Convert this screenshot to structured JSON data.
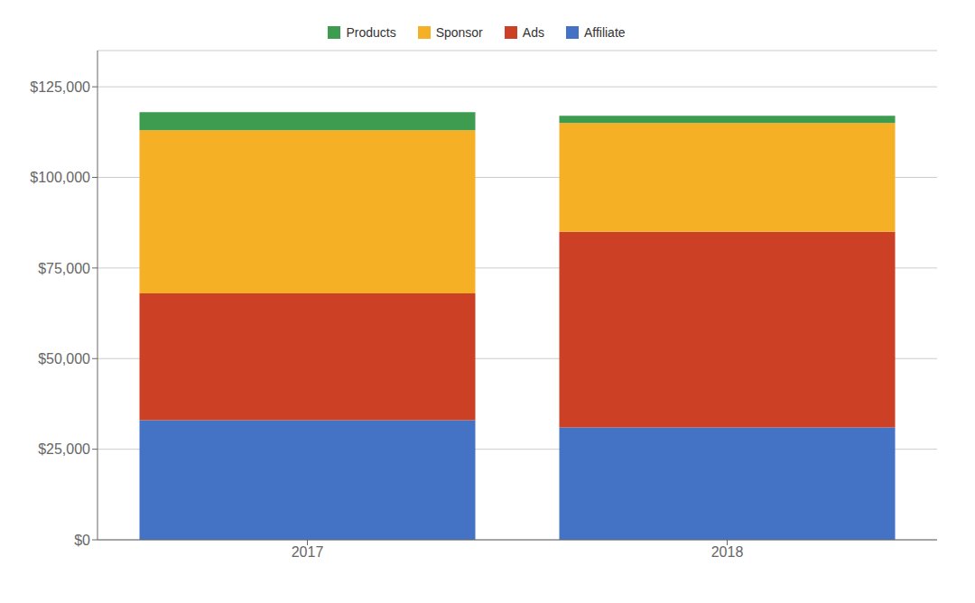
{
  "chart_data": {
    "type": "bar",
    "stacked": true,
    "categories": [
      "2017",
      "2018"
    ],
    "series": [
      {
        "name": "Affiliate",
        "color": "#4472C4",
        "values": [
          33000,
          31000
        ]
      },
      {
        "name": "Ads",
        "color": "#CC4125",
        "values": [
          35000,
          54000
        ]
      },
      {
        "name": "Sponsor",
        "color": "#F6B026",
        "values": [
          45000,
          30000
        ]
      },
      {
        "name": "Products",
        "color": "#3D9C50",
        "values": [
          5000,
          2000
        ]
      }
    ],
    "ylim": [
      0,
      135000
    ],
    "yticks": [
      {
        "value": 0,
        "label": "$0"
      },
      {
        "value": 25000,
        "label": "$25,000"
      },
      {
        "value": 50000,
        "label": "$50,000"
      },
      {
        "value": 75000,
        "label": "$75,000"
      },
      {
        "value": 100000,
        "label": "$100,000"
      },
      {
        "value": 125000,
        "label": "$125,000"
      }
    ],
    "grid": true,
    "legend": "top"
  }
}
